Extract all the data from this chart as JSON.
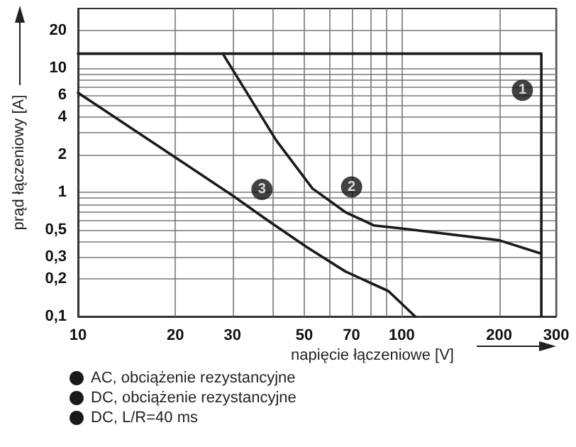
{
  "chart_data": {
    "type": "line",
    "xlabel": "napięcie łączeniowe [V]",
    "ylabel": "prąd łączeniowy [A]",
    "log": "xy",
    "grid": true,
    "legend": "bottom",
    "marker": "none",
    "line_style": "solid",
    "xlim": [
      10,
      300
    ],
    "ylim": [
      0.1,
      30
    ],
    "xticks": [
      10,
      20,
      30,
      {
        "value": 40,
        "label": null
      },
      50,
      {
        "value": 60,
        "label": null
      },
      70,
      {
        "value": 80,
        "label": null
      },
      {
        "value": 90,
        "label": null
      },
      100,
      200,
      300
    ],
    "yticks": [
      {
        "value": 0.1,
        "label": "0,1"
      },
      {
        "value": 0.2,
        "label": "0,2"
      },
      {
        "value": 0.3,
        "label": "0,3"
      },
      {
        "value": 0.4,
        "label": null
      },
      {
        "value": 0.5,
        "label": "0,5"
      },
      {
        "value": 0.6,
        "label": null
      },
      {
        "value": 0.7,
        "label": null
      },
      {
        "value": 0.8,
        "label": null
      },
      {
        "value": 0.9,
        "label": null
      },
      1,
      2,
      {
        "value": 3,
        "label": null
      },
      4,
      {
        "value": 5,
        "label": null
      },
      6,
      {
        "value": 7,
        "label": null
      },
      {
        "value": 8,
        "label": null
      },
      {
        "value": 9,
        "label": null
      },
      10,
      20
    ],
    "series": [
      {
        "name": "AC, obciążenie rezystancyjne",
        "color": "#1a1a1a",
        "x": [
          10,
          270,
          270
        ],
        "values": [
          13,
          13,
          0.1
        ]
      },
      {
        "name": "DC, obciążenie rezystancyjne",
        "color": "#1a1a1a",
        "x": [
          28,
          41,
          53,
          67,
          82,
          100,
          200,
          270
        ],
        "values": [
          13,
          2.6,
          1.07,
          0.69,
          0.54,
          0.51,
          0.41,
          0.32
        ]
      },
      {
        "name": "DC, L/R=40 ms",
        "color": "#1a1a1a",
        "x": [
          10,
          20,
          30,
          39,
          51,
          67,
          91,
          110
        ],
        "values": [
          6.3,
          1.9,
          0.94,
          0.58,
          0.36,
          0.23,
          0.16,
          0.1
        ]
      }
    ],
    "annotations": [
      {
        "text": "1",
        "x": 236,
        "y": 6.6
      },
      {
        "text": "2",
        "x": 70,
        "y": 1.1
      },
      {
        "text": "3",
        "x": 37,
        "y": 1.05
      }
    ]
  }
}
